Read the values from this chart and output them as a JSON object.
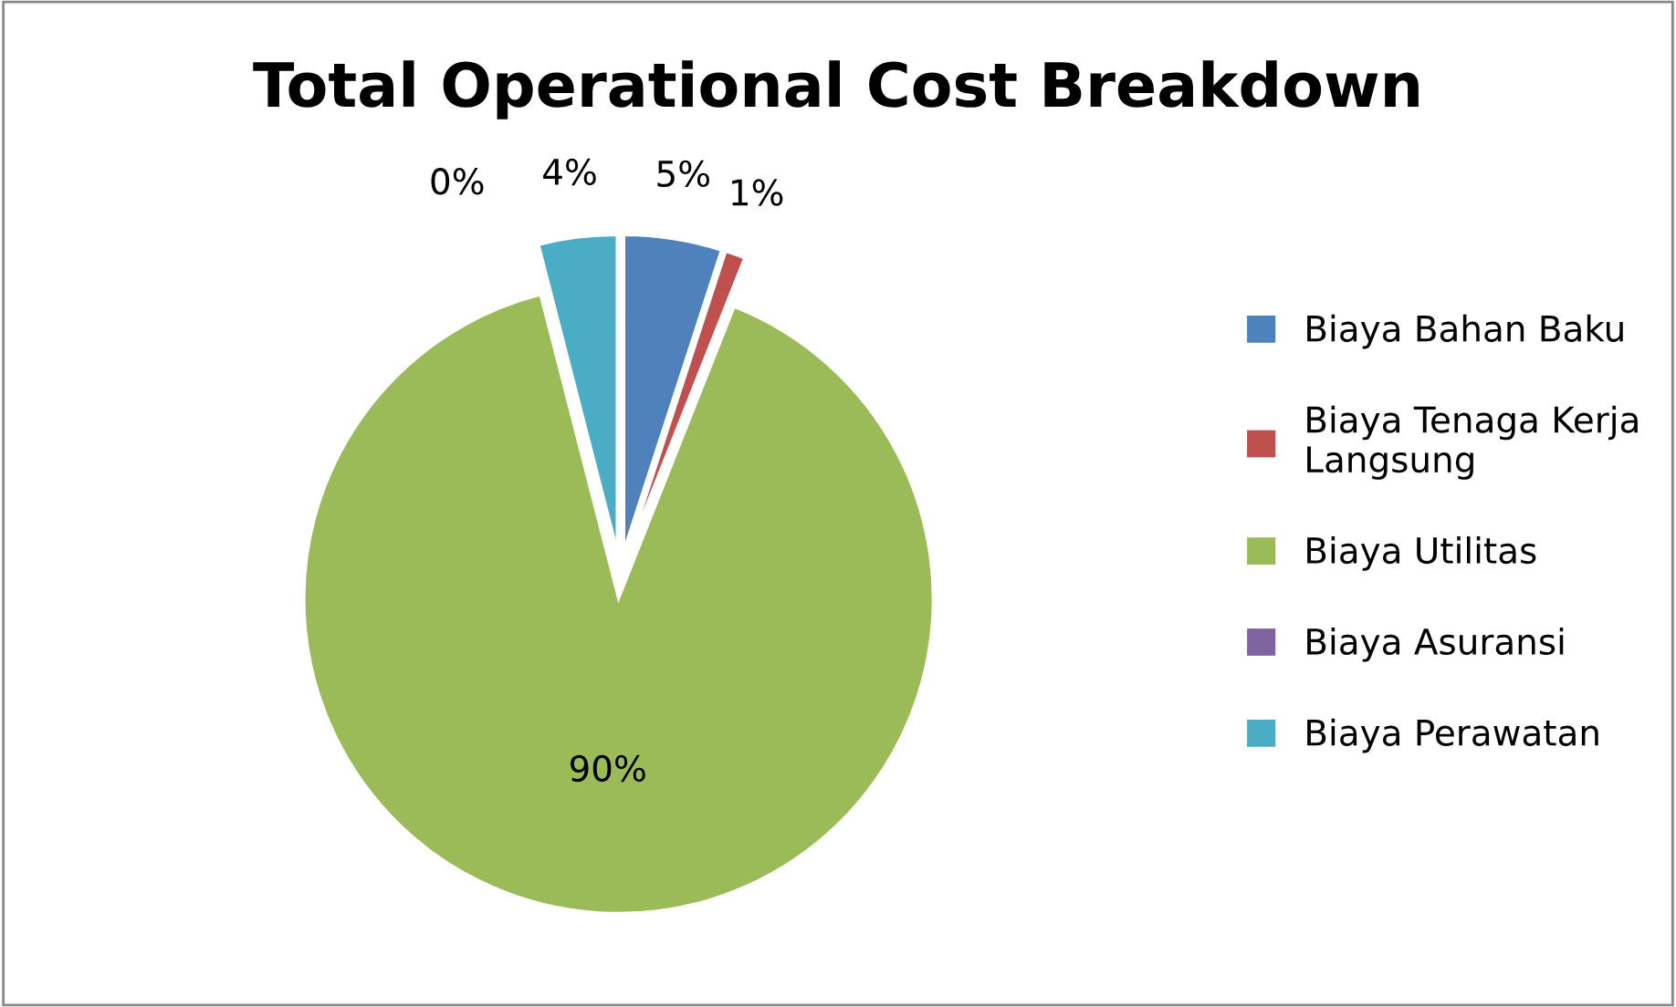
{
  "chart_data": {
    "type": "pie",
    "title": "Total Operational Cost Breakdown",
    "categories": [
      "Biaya Bahan Baku",
      "Biaya Tenaga Kerja Langsung",
      "Biaya Utilitas",
      "Biaya Asuransi",
      "Biaya Perawatan"
    ],
    "values": [
      5,
      1,
      90,
      0,
      4
    ],
    "colors": [
      "#4f81bd",
      "#c0504d",
      "#9bbb59",
      "#8064a2",
      "#4bacc6"
    ],
    "value_labels": [
      "5%",
      "1%",
      "90%",
      "0%",
      "4%"
    ],
    "legend": "right"
  }
}
